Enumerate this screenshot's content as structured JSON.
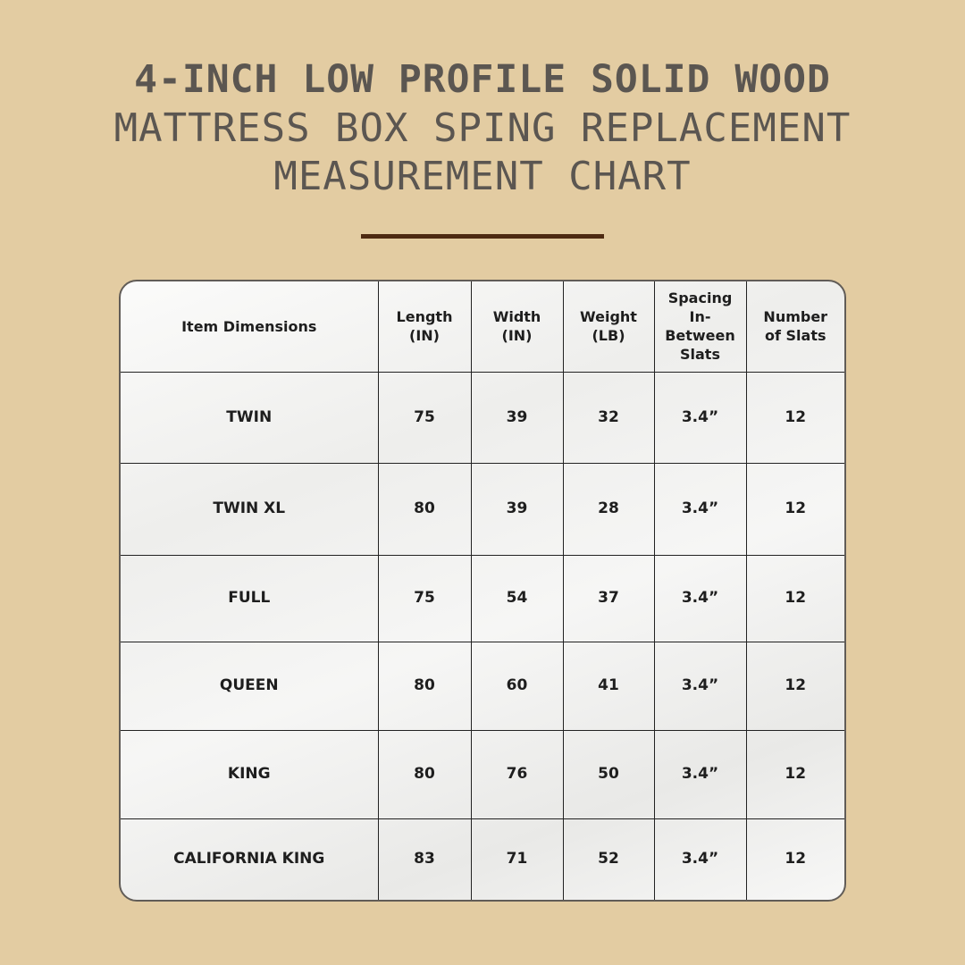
{
  "title": {
    "line1": "4-INCH LOW PROFILE SOLID WOOD",
    "line2": "MATTRESS BOX SPING REPLACEMENT",
    "line3": "MEASUREMENT CHART"
  },
  "colors": {
    "background": "#e3cca2",
    "title_text": "#5b5651",
    "divider": "#4e2a12",
    "table_border": "#615c57"
  },
  "table": {
    "headers": [
      {
        "l1": "Item Dimensions",
        "l2": "",
        "l3": ""
      },
      {
        "l1": "Length",
        "l2": "(IN)",
        "l3": ""
      },
      {
        "l1": "Width",
        "l2": "(IN)",
        "l3": ""
      },
      {
        "l1": "Weight",
        "l2": "(LB)",
        "l3": ""
      },
      {
        "l1": "Spacing",
        "l2": "In-Between",
        "l3": "Slats"
      },
      {
        "l1": "Number",
        "l2": "of Slats",
        "l3": ""
      }
    ],
    "rows": [
      [
        "TWIN",
        "75",
        "39",
        "32",
        "3.4”",
        "12"
      ],
      [
        "TWIN XL",
        "80",
        "39",
        "28",
        "3.4”",
        "12"
      ],
      [
        "FULL",
        "75",
        "54",
        "37",
        "3.4”",
        "12"
      ],
      [
        "QUEEN",
        "80",
        "60",
        "41",
        "3.4”",
        "12"
      ],
      [
        "KING",
        "80",
        "76",
        "50",
        "3.4”",
        "12"
      ],
      [
        "CALIFORNIA KING",
        "83",
        "71",
        "52",
        "3.4”",
        "12"
      ]
    ]
  }
}
